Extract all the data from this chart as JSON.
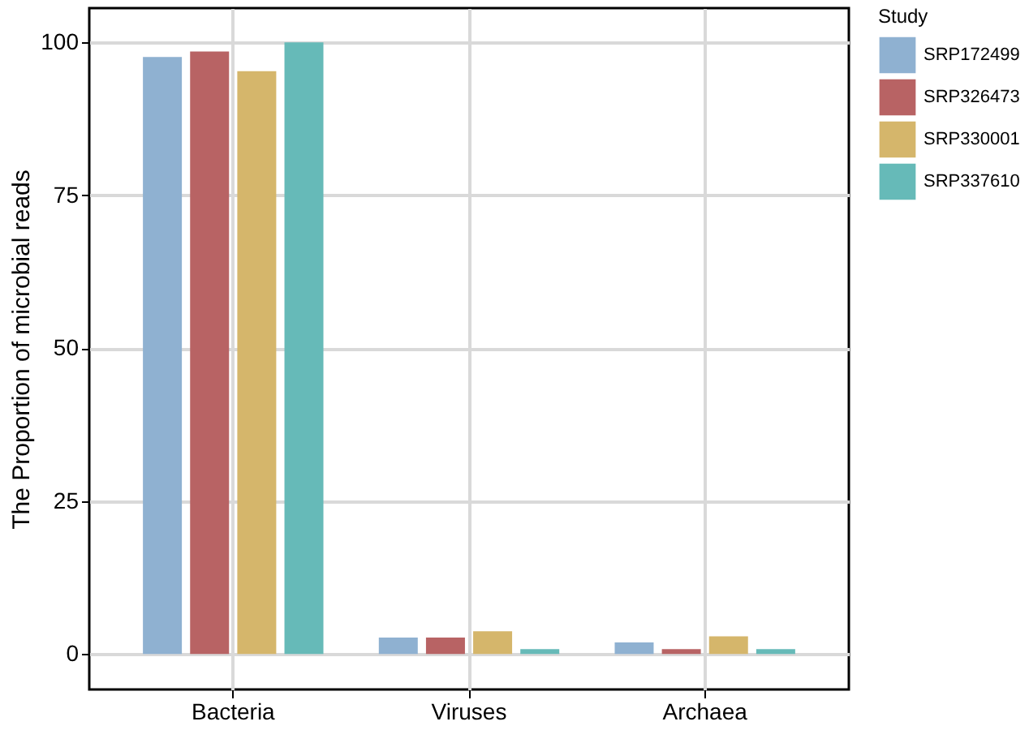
{
  "chart_data": {
    "type": "bar",
    "ylabel": "The Proportion of microbial reads",
    "legend_title": "Study",
    "categories": [
      "Bacteria",
      "Viruses",
      "Archaea"
    ],
    "series": [
      {
        "name": "SRP172499",
        "color": "#8fb1d1",
        "values": [
          97.6,
          2.7,
          1.9
        ]
      },
      {
        "name": "SRP326473",
        "color": "#b86364",
        "values": [
          98.5,
          2.7,
          0.8
        ]
      },
      {
        "name": "SRP330001",
        "color": "#d5b66b",
        "values": [
          95.3,
          3.7,
          2.9
        ]
      },
      {
        "name": "SRP337610",
        "color": "#66bab8",
        "values": [
          100,
          0.8,
          0.8
        ]
      }
    ],
    "ylim": [
      -5.8,
      105.6
    ],
    "yticks": [
      0,
      25,
      50,
      75,
      100
    ],
    "grid": true,
    "legend": "right"
  }
}
